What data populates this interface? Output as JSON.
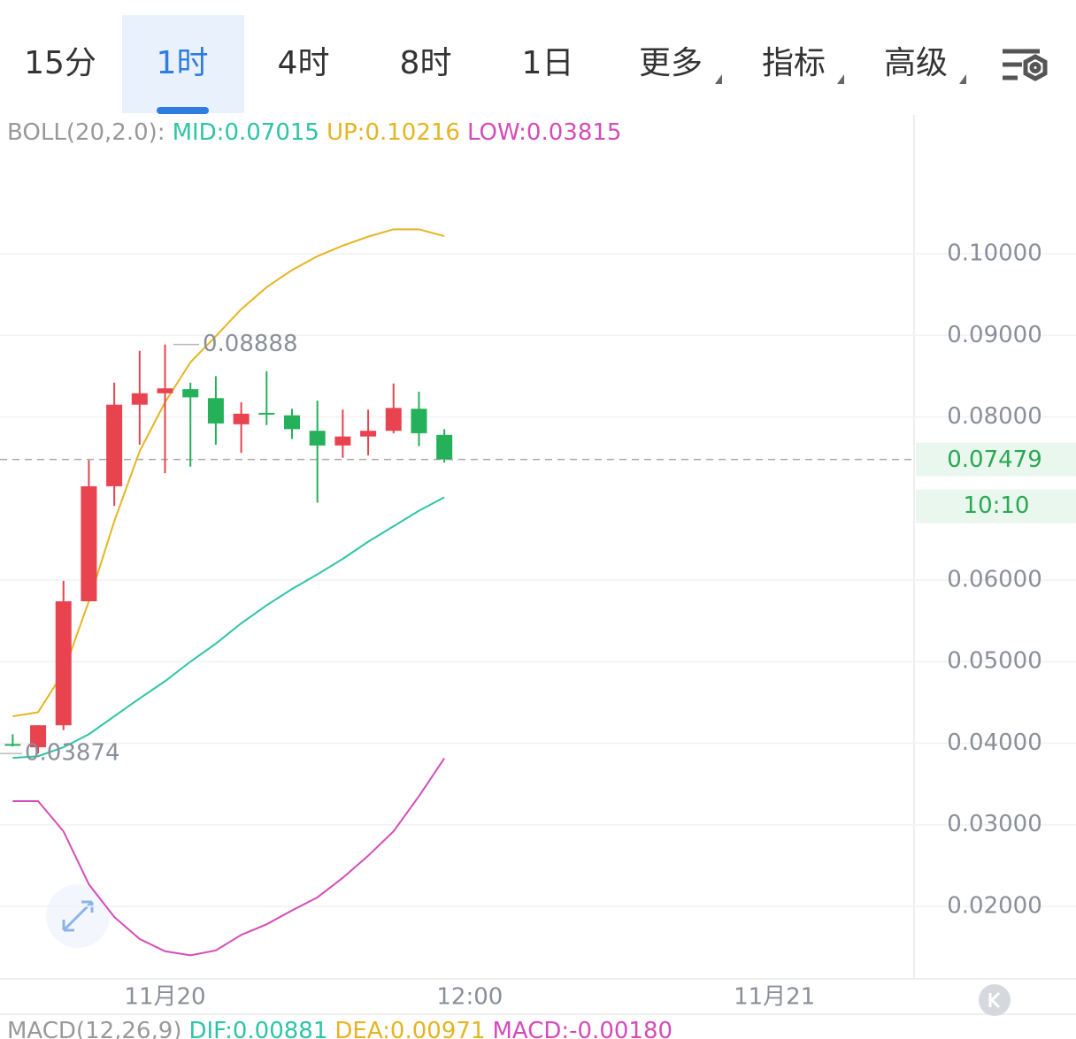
{
  "tabs": [
    "15分",
    "1时",
    "4时",
    "8时",
    "1日",
    "更多",
    "指标",
    "高级"
  ],
  "selected_tab": 1,
  "chart_data": {
    "type": "candlestick",
    "legend_top": [
      "BOLL(20,2.0):",
      "MID:0.07015",
      "UP:0.10216",
      "LOW:0.03815"
    ],
    "legend_bottom": [
      "MACD(12,26,9)",
      "DIF:0.00881",
      "DEA:0.00971",
      "MACD:-0.00180"
    ],
    "x": [
      0,
      1,
      2,
      3,
      4,
      5,
      6,
      7,
      8,
      9,
      10,
      11,
      12,
      13,
      14,
      15,
      16,
      17
    ],
    "xlim": [
      -0.5,
      35.5
    ],
    "xticks": [
      {
        "value": 6,
        "label": "11月20"
      },
      {
        "value": 18,
        "label": "12:00"
      },
      {
        "value": 30,
        "label": "11月21"
      }
    ],
    "open": [
      0.0399,
      0.0395,
      0.0422,
      0.0574,
      0.0715,
      0.0815,
      0.0829,
      0.0834,
      0.0823,
      0.0791,
      0.0805,
      0.0802,
      0.0783,
      0.0765,
      0.0776,
      0.0783,
      0.081,
      0.0778
    ],
    "high": [
      0.0411,
      0.0422,
      0.0599,
      0.0747,
      0.0842,
      0.0881,
      0.08888,
      0.0842,
      0.085,
      0.0818,
      0.0856,
      0.081,
      0.082,
      0.0809,
      0.0809,
      0.0841,
      0.0831,
      0.0785
    ],
    "low": [
      0.0396,
      0.03874,
      0.0416,
      0.0574,
      0.0691,
      0.0766,
      0.0731,
      0.0739,
      0.0766,
      0.0756,
      0.079,
      0.0773,
      0.0695,
      0.075,
      0.0753,
      0.078,
      0.0764,
      0.0744
    ],
    "close": [
      0.0398,
      0.0422,
      0.0574,
      0.0715,
      0.0815,
      0.0829,
      0.0835,
      0.0824,
      0.0792,
      0.0804,
      0.0804,
      0.0785,
      0.0765,
      0.0776,
      0.0783,
      0.0811,
      0.078,
      0.07479
    ],
    "up_color": "#e8434f",
    "down_color": "#25b05a",
    "series": [
      {
        "name": "UP",
        "color": "#e6b422",
        "values": [
          0.0433,
          0.0438,
          0.0487,
          0.0574,
          0.0672,
          0.0758,
          0.0818,
          0.0867,
          0.0899,
          0.0932,
          0.0959,
          0.098,
          0.0997,
          0.101,
          0.1021,
          0.103,
          0.103,
          0.10216
        ]
      },
      {
        "name": "MID",
        "color": "#2ec4a6",
        "values": [
          0.0382,
          0.0384,
          0.0395,
          0.0411,
          0.0433,
          0.0455,
          0.0476,
          0.05,
          0.0522,
          0.0547,
          0.0569,
          0.0589,
          0.0607,
          0.0626,
          0.0647,
          0.0666,
          0.0685,
          0.07015
        ]
      },
      {
        "name": "LOW",
        "color": "#d44cb8",
        "values": [
          0.0329,
          0.0329,
          0.0292,
          0.0227,
          0.0187,
          0.016,
          0.0145,
          0.014,
          0.0146,
          0.0165,
          0.0178,
          0.0195,
          0.0211,
          0.0235,
          0.0262,
          0.0292,
          0.0335,
          0.03815
        ]
      }
    ],
    "ylim": [
      0.01111,
      0.11702
    ],
    "yticks": [
      {
        "value": 0.1,
        "label": "0.10000"
      },
      {
        "value": 0.09,
        "label": "0.09000"
      },
      {
        "value": 0.08,
        "label": "0.08000"
      },
      {
        "value": 0.06,
        "label": "0.06000"
      },
      {
        "value": 0.05,
        "label": "0.05000"
      },
      {
        "value": 0.04,
        "label": "0.04000"
      },
      {
        "value": 0.03,
        "label": "0.03000"
      },
      {
        "value": 0.02,
        "label": "0.02000"
      }
    ],
    "grid": true,
    "last_price": {
      "value": 0.07479,
      "label": "0.07479"
    },
    "countdown": "10:10",
    "max_label": {
      "value": 0.08888,
      "label": "0.08888"
    },
    "min_label": {
      "value": 0.03874,
      "label": "0.03874"
    }
  }
}
